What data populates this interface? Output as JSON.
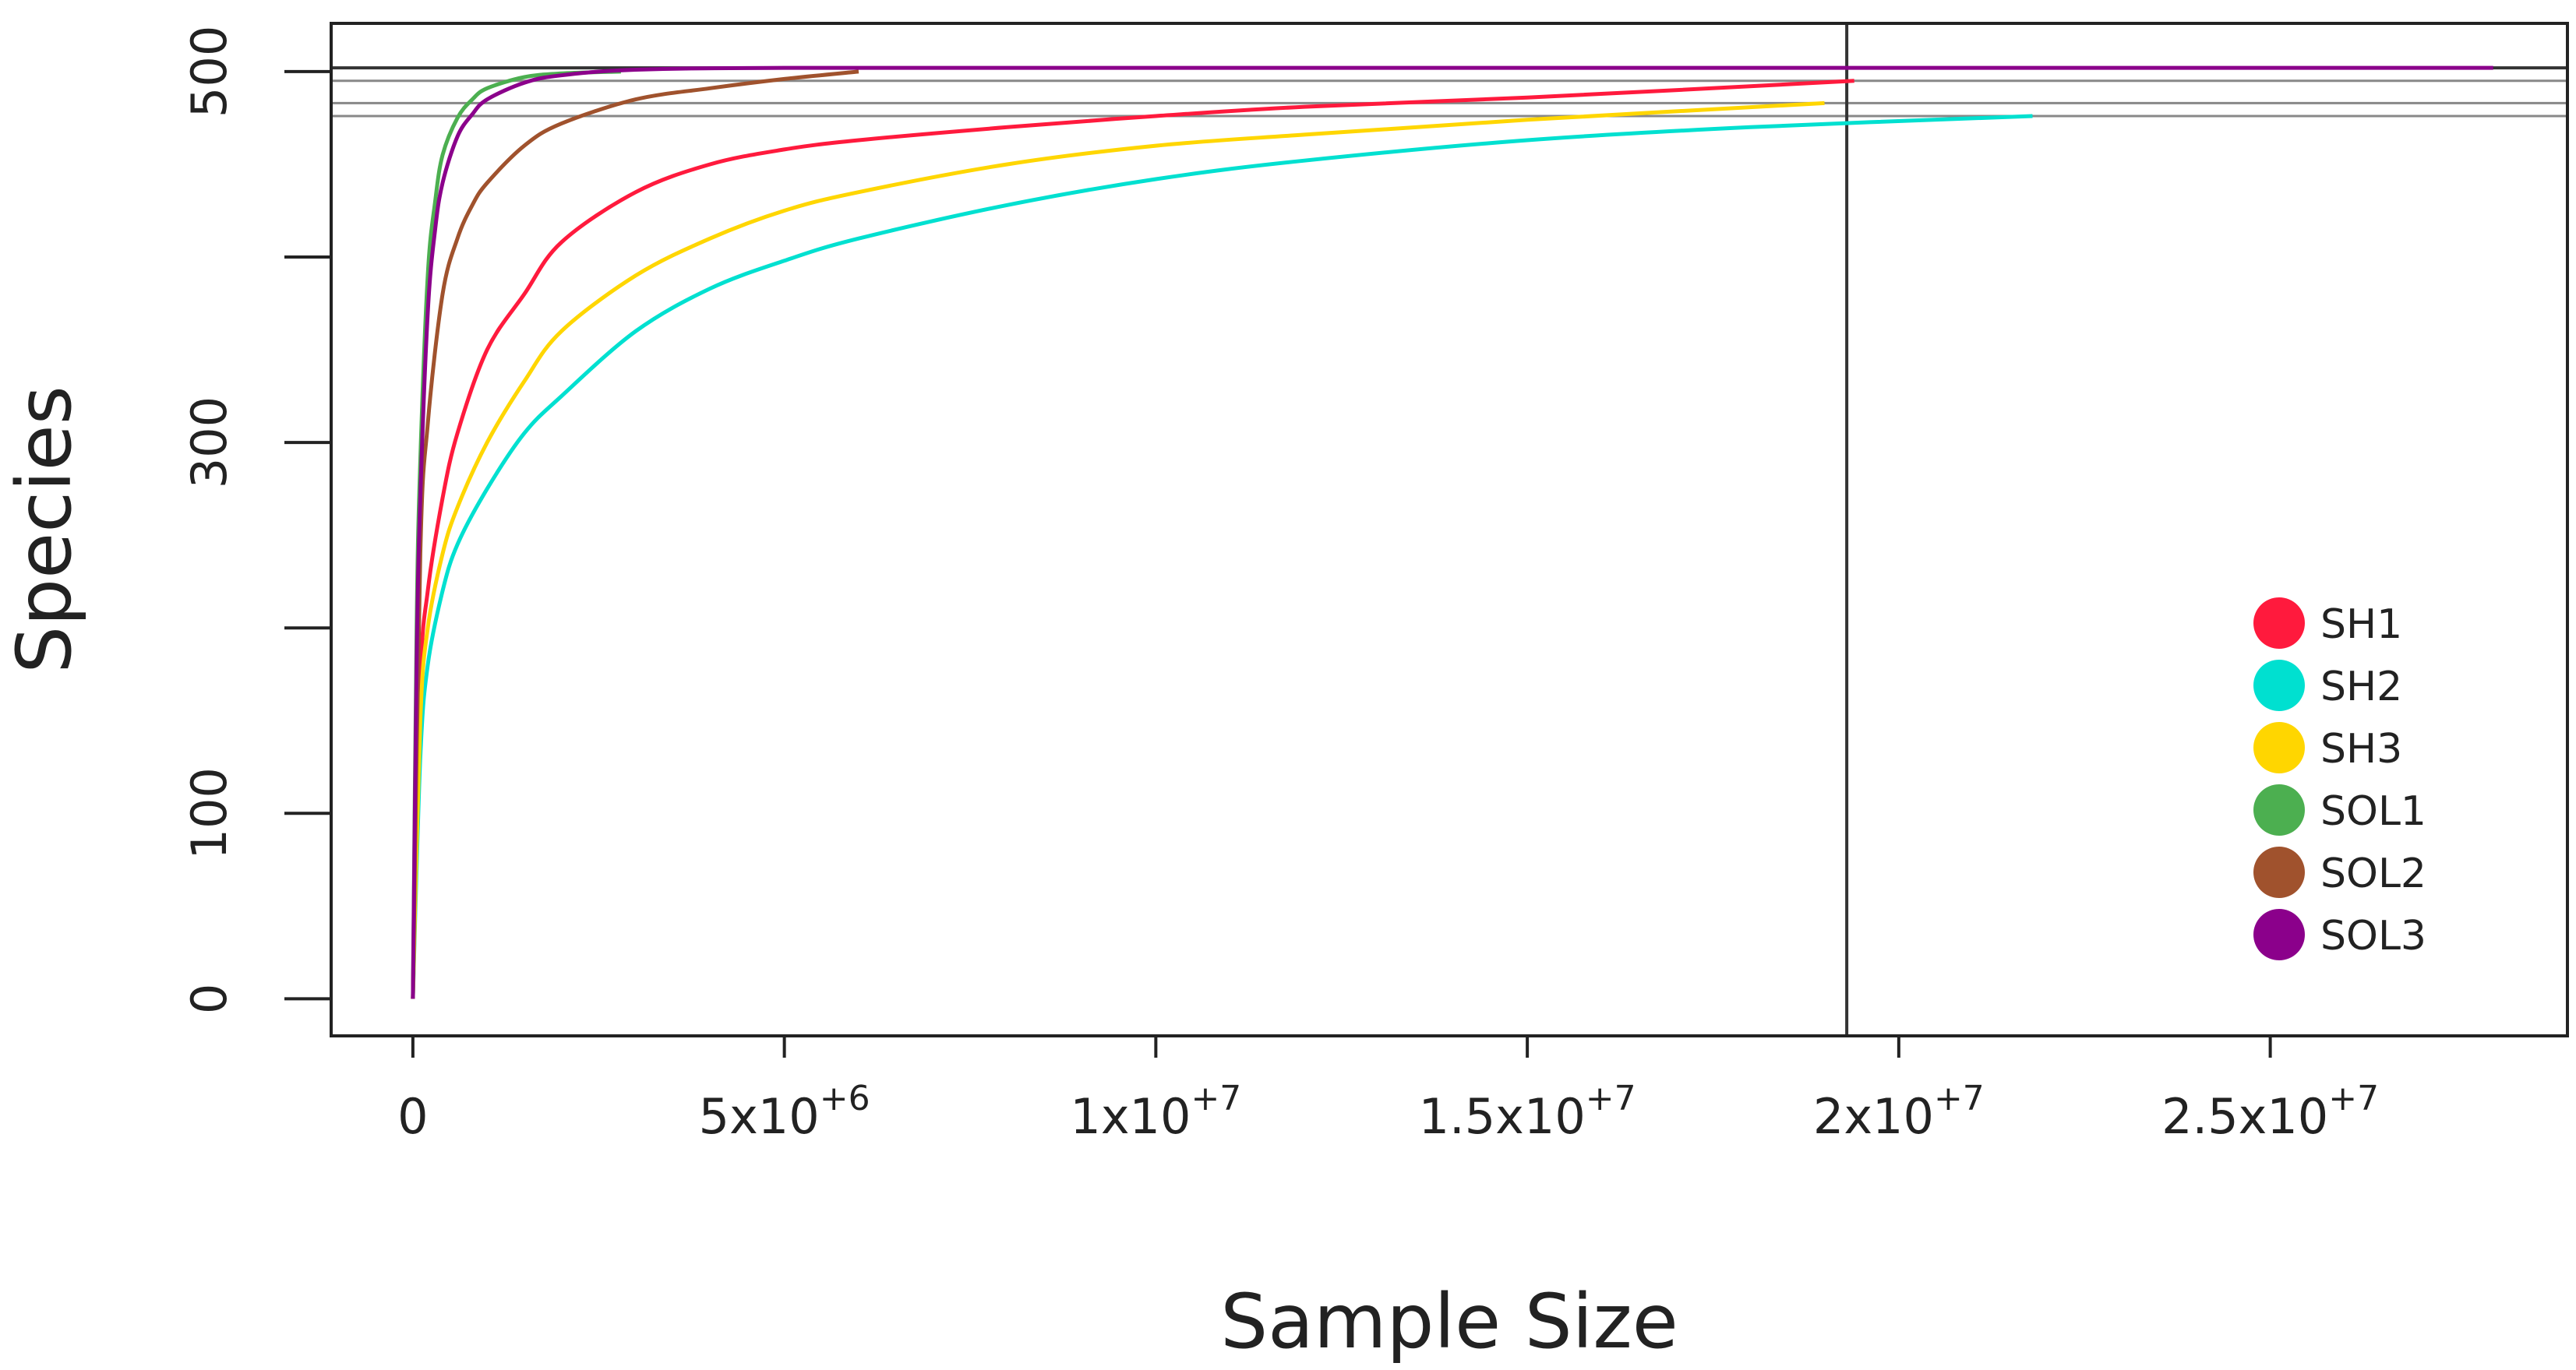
{
  "chart_data": {
    "type": "line",
    "title": "",
    "xlabel": "Sample Size",
    "ylabel": "Species",
    "xlim": [
      -1100000,
      29000000
    ],
    "ylim": [
      -20,
      526
    ],
    "x_ticks": [
      {
        "value": 0,
        "base": "0",
        "exp": ""
      },
      {
        "value": 5000000,
        "base": "5x10",
        "exp": "+6"
      },
      {
        "value": 10000000,
        "base": "1x10",
        "exp": "+7"
      },
      {
        "value": 15000000,
        "base": "1.5x10",
        "exp": "+7"
      },
      {
        "value": 20000000,
        "base": "2x10",
        "exp": "+7"
      },
      {
        "value": 25000000,
        "base": "2.5x10",
        "exp": "+7"
      }
    ],
    "y_ticks": [
      0,
      100,
      200,
      300,
      400,
      500
    ],
    "y_tick_labels": [
      {
        "value": 0,
        "label": "0"
      },
      {
        "value": 100,
        "label": "100"
      },
      {
        "value": 300,
        "label": "300"
      },
      {
        "value": 500,
        "label": "500"
      }
    ],
    "reference_lines": {
      "vertical_x": 19300000,
      "horizontal_y": [
        476,
        483,
        495,
        502
      ]
    },
    "legend_position": "right",
    "series": [
      {
        "name": "SH1",
        "color": "#ff1a3d",
        "asymptote": 495,
        "max_x": 19400000,
        "x": [
          0,
          100000,
          200000,
          400000,
          600000,
          1000000,
          1500000,
          2000000,
          3000000,
          4000000,
          5000000,
          6000000,
          8000000,
          10000000,
          12000000,
          15000000,
          19400000
        ],
        "y": [
          0,
          170,
          220,
          270,
          305,
          350,
          380,
          408,
          435,
          450,
          458,
          463,
          470,
          476,
          481,
          486,
          495
        ]
      },
      {
        "name": "SH2",
        "color": "#00e0d0",
        "asymptote": 476,
        "max_x": 21800000,
        "x": [
          0,
          100000,
          200000,
          400000,
          600000,
          1000000,
          1500000,
          2000000,
          3000000,
          4000000,
          5000000,
          6000000,
          8000000,
          10000000,
          12000000,
          15000000,
          18000000,
          21800000
        ],
        "y": [
          0,
          130,
          180,
          220,
          245,
          275,
          305,
          325,
          360,
          383,
          398,
          410,
          428,
          442,
          452,
          463,
          470,
          476
        ]
      },
      {
        "name": "SH3",
        "color": "#ffd600",
        "asymptote": 483,
        "max_x": 19000000,
        "x": [
          0,
          100000,
          200000,
          400000,
          600000,
          1000000,
          1500000,
          2000000,
          3000000,
          4000000,
          5000000,
          6000000,
          8000000,
          10000000,
          12000000,
          15000000,
          19000000
        ],
        "y": [
          0,
          150,
          200,
          240,
          265,
          300,
          333,
          360,
          390,
          410,
          425,
          435,
          450,
          460,
          466,
          474,
          483
        ]
      },
      {
        "name": "SOL1",
        "color": "#4caf50",
        "asymptote": 500,
        "max_x": 2800000,
        "x": [
          0,
          50000,
          100000,
          200000,
          300000,
          400000,
          600000,
          800000,
          1000000,
          1500000,
          2000000,
          2800000
        ],
        "y": [
          0,
          200,
          290,
          390,
          430,
          455,
          475,
          485,
          491,
          497,
          499,
          500
        ]
      },
      {
        "name": "SOL2",
        "color": "#a0522d",
        "asymptote": 500,
        "max_x": 6000000,
        "x": [
          0,
          100000,
          200000,
          400000,
          600000,
          800000,
          1000000,
          1500000,
          2000000,
          3000000,
          4000000,
          5000000,
          6000000
        ],
        "y": [
          0,
          240,
          310,
          380,
          410,
          428,
          440,
          460,
          472,
          485,
          491,
          496,
          500
        ]
      },
      {
        "name": "SOL3",
        "color": "#8b008b",
        "asymptote": 502,
        "max_x": 28000000,
        "x": [
          0,
          50000,
          100000,
          200000,
          300000,
          400000,
          600000,
          800000,
          1000000,
          1500000,
          2000000,
          3000000,
          5000000,
          10000000,
          20000000,
          28000000
        ],
        "y": [
          0,
          180,
          270,
          370,
          415,
          440,
          465,
          477,
          485,
          494,
          498,
          501,
          502,
          502,
          502,
          502
        ]
      }
    ]
  }
}
